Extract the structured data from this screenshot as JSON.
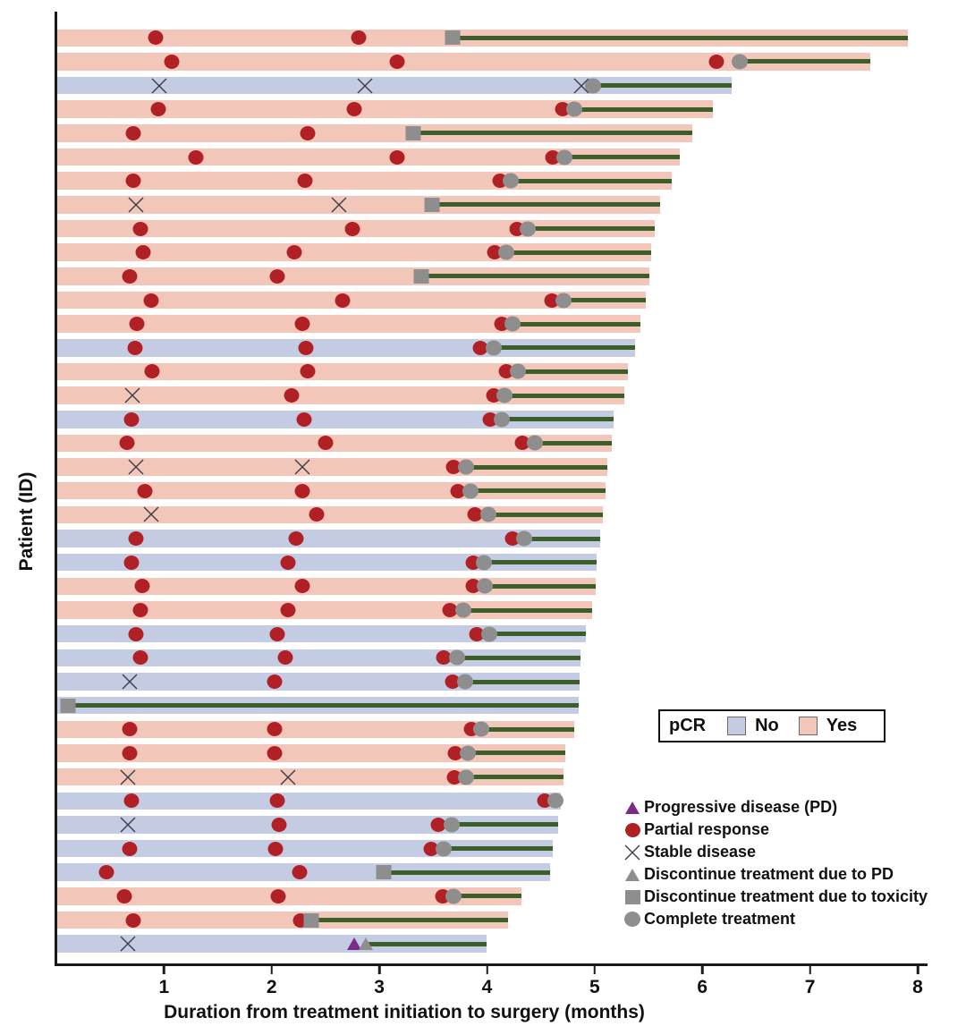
{
  "colors": {
    "pcr_yes_bar": "#f2c6b9",
    "pcr_no_bar": "#c4cce4",
    "partial_response": "#b02025",
    "progressive_disease": "#7b2a85",
    "discontinue_gray": "#8e8e8e",
    "treatment_line_green": "#3c5e28",
    "axis": "#1a1a1a"
  },
  "pcr_legend": {
    "title": "pCR",
    "no_label": "No",
    "yes_label": "Yes"
  },
  "marker_legend": [
    {
      "marker": "pd",
      "label": "Progressive disease (PD)"
    },
    {
      "marker": "pr",
      "label": "Partial response"
    },
    {
      "marker": "sd",
      "label": "Stable disease"
    },
    {
      "marker": "disc_pd",
      "label": "Discontinue treatment due to PD"
    },
    {
      "marker": "disc_tox",
      "label": "Discontinue treatment due to toxicity"
    },
    {
      "marker": "complete",
      "label": "Complete treatment"
    }
  ],
  "chart_data": {
    "type": "bar",
    "subtype": "swimmer",
    "title": "",
    "xlabel": "Duration from treatment initiation to surgery (months)",
    "ylabel": "Patient (ID)",
    "xlim": [
      0,
      8
    ],
    "xticks": [
      1,
      2,
      3,
      4,
      5,
      6,
      7,
      8
    ],
    "grid": false,
    "marker_types": {
      "pr": "Partial response (red circle)",
      "sd": "Stable disease (x)",
      "pd": "Progressive disease (purple triangle)",
      "disc_pd": "Discontinue treatment due to PD (gray triangle)",
      "disc_tox": "Discontinue treatment due to toxicity (gray square)",
      "complete": "Complete treatment (gray circle)"
    },
    "patients": [
      {
        "pcr": "Yes",
        "surgery": 7.9,
        "line_from": 3.67,
        "events": [
          {
            "t": "pr",
            "x": 0.91
          },
          {
            "t": "pr",
            "x": 2.8
          },
          {
            "t": "disc_tox",
            "x": 3.67
          }
        ]
      },
      {
        "pcr": "Yes",
        "surgery": 7.55,
        "line_from": 6.34,
        "events": [
          {
            "t": "pr",
            "x": 1.06
          },
          {
            "t": "pr",
            "x": 3.16
          },
          {
            "t": "pr",
            "x": 6.12
          },
          {
            "t": "complete",
            "x": 6.34
          }
        ]
      },
      {
        "pcr": "No",
        "surgery": 6.26,
        "line_from": 4.98,
        "events": [
          {
            "t": "sd",
            "x": 0.95
          },
          {
            "t": "sd",
            "x": 2.86
          },
          {
            "t": "sd",
            "x": 4.87
          },
          {
            "t": "complete",
            "x": 4.98
          }
        ]
      },
      {
        "pcr": "Yes",
        "surgery": 6.09,
        "line_from": 4.8,
        "events": [
          {
            "t": "pr",
            "x": 0.94
          },
          {
            "t": "pr",
            "x": 2.76
          },
          {
            "t": "pr",
            "x": 4.69
          },
          {
            "t": "complete",
            "x": 4.8
          }
        ]
      },
      {
        "pcr": "Yes",
        "surgery": 5.9,
        "line_from": 3.31,
        "events": [
          {
            "t": "pr",
            "x": 0.71
          },
          {
            "t": "pr",
            "x": 2.33
          },
          {
            "t": "disc_tox",
            "x": 3.31
          }
        ]
      },
      {
        "pcr": "Yes",
        "surgery": 5.78,
        "line_from": 4.71,
        "events": [
          {
            "t": "pr",
            "x": 1.29
          },
          {
            "t": "pr",
            "x": 3.16
          },
          {
            "t": "pr",
            "x": 4.6
          },
          {
            "t": "complete",
            "x": 4.71
          }
        ]
      },
      {
        "pcr": "Yes",
        "surgery": 5.71,
        "line_from": 4.21,
        "events": [
          {
            "t": "pr",
            "x": 0.71
          },
          {
            "t": "pr",
            "x": 2.3
          },
          {
            "t": "pr",
            "x": 4.11
          },
          {
            "t": "complete",
            "x": 4.21
          }
        ]
      },
      {
        "pcr": "Yes",
        "surgery": 5.6,
        "line_from": 3.48,
        "events": [
          {
            "t": "sd",
            "x": 0.73
          },
          {
            "t": "sd",
            "x": 2.62
          },
          {
            "t": "disc_tox",
            "x": 3.48
          }
        ]
      },
      {
        "pcr": "Yes",
        "surgery": 5.55,
        "line_from": 4.37,
        "events": [
          {
            "t": "pr",
            "x": 0.77
          },
          {
            "t": "pr",
            "x": 2.74
          },
          {
            "t": "pr",
            "x": 4.27
          },
          {
            "t": "complete",
            "x": 4.37
          }
        ]
      },
      {
        "pcr": "Yes",
        "surgery": 5.52,
        "line_from": 4.17,
        "events": [
          {
            "t": "pr",
            "x": 0.8
          },
          {
            "t": "pr",
            "x": 2.2
          },
          {
            "t": "pr",
            "x": 4.06
          },
          {
            "t": "complete",
            "x": 4.17
          }
        ]
      },
      {
        "pcr": "Yes",
        "surgery": 5.5,
        "line_from": 3.38,
        "events": [
          {
            "t": "pr",
            "x": 0.67
          },
          {
            "t": "pr",
            "x": 2.04
          },
          {
            "t": "disc_tox",
            "x": 3.38
          }
        ]
      },
      {
        "pcr": "Yes",
        "surgery": 5.47,
        "line_from": 4.7,
        "events": [
          {
            "t": "pr",
            "x": 0.87
          },
          {
            "t": "pr",
            "x": 2.65
          },
          {
            "t": "pr",
            "x": 4.59
          },
          {
            "t": "complete",
            "x": 4.7
          }
        ]
      },
      {
        "pcr": "Yes",
        "surgery": 5.42,
        "line_from": 4.23,
        "events": [
          {
            "t": "pr",
            "x": 0.74
          },
          {
            "t": "pr",
            "x": 2.28
          },
          {
            "t": "pr",
            "x": 4.13
          },
          {
            "t": "complete",
            "x": 4.23
          }
        ]
      },
      {
        "pcr": "No",
        "surgery": 5.37,
        "line_from": 4.05,
        "events": [
          {
            "t": "pr",
            "x": 0.72
          },
          {
            "t": "pr",
            "x": 2.31
          },
          {
            "t": "pr",
            "x": 3.93
          },
          {
            "t": "complete",
            "x": 4.05
          }
        ]
      },
      {
        "pcr": "Yes",
        "surgery": 5.3,
        "line_from": 4.28,
        "events": [
          {
            "t": "pr",
            "x": 0.88
          },
          {
            "t": "pr",
            "x": 2.33
          },
          {
            "t": "pr",
            "x": 4.17
          },
          {
            "t": "complete",
            "x": 4.28
          }
        ]
      },
      {
        "pcr": "Yes",
        "surgery": 5.27,
        "line_from": 4.15,
        "events": [
          {
            "t": "sd",
            "x": 0.7
          },
          {
            "t": "pr",
            "x": 2.18
          },
          {
            "t": "pr",
            "x": 4.05
          },
          {
            "t": "complete",
            "x": 4.15
          }
        ]
      },
      {
        "pcr": "No",
        "surgery": 5.17,
        "line_from": 4.13,
        "events": [
          {
            "t": "pr",
            "x": 0.69
          },
          {
            "t": "pr",
            "x": 2.29
          },
          {
            "t": "pr",
            "x": 4.02
          },
          {
            "t": "complete",
            "x": 4.13
          }
        ]
      },
      {
        "pcr": "Yes",
        "surgery": 5.15,
        "line_from": 4.44,
        "events": [
          {
            "t": "pr",
            "x": 0.65
          },
          {
            "t": "pr",
            "x": 2.49
          },
          {
            "t": "pr",
            "x": 4.32
          },
          {
            "t": "complete",
            "x": 4.44
          }
        ]
      },
      {
        "pcr": "Yes",
        "surgery": 5.11,
        "line_from": 3.8,
        "events": [
          {
            "t": "sd",
            "x": 0.73
          },
          {
            "t": "sd",
            "x": 2.28
          },
          {
            "t": "pr",
            "x": 3.68
          },
          {
            "t": "complete",
            "x": 3.8
          }
        ]
      },
      {
        "pcr": "Yes",
        "surgery": 5.09,
        "line_from": 3.84,
        "events": [
          {
            "t": "pr",
            "x": 0.81
          },
          {
            "t": "pr",
            "x": 2.28
          },
          {
            "t": "pr",
            "x": 3.72
          },
          {
            "t": "complete",
            "x": 3.84
          }
        ]
      },
      {
        "pcr": "Yes",
        "surgery": 5.07,
        "line_from": 4.0,
        "events": [
          {
            "t": "sd",
            "x": 0.87
          },
          {
            "t": "pr",
            "x": 2.41
          },
          {
            "t": "pr",
            "x": 3.88
          },
          {
            "t": "complete",
            "x": 4.0
          }
        ]
      },
      {
        "pcr": "No",
        "surgery": 5.04,
        "line_from": 4.34,
        "events": [
          {
            "t": "pr",
            "x": 0.73
          },
          {
            "t": "pr",
            "x": 2.22
          },
          {
            "t": "pr",
            "x": 4.23
          },
          {
            "t": "complete",
            "x": 4.34
          }
        ]
      },
      {
        "pcr": "No",
        "surgery": 5.01,
        "line_from": 3.96,
        "events": [
          {
            "t": "pr",
            "x": 0.69
          },
          {
            "t": "pr",
            "x": 2.14
          },
          {
            "t": "pr",
            "x": 3.86
          },
          {
            "t": "complete",
            "x": 3.96
          }
        ]
      },
      {
        "pcr": "Yes",
        "surgery": 5.0,
        "line_from": 3.97,
        "events": [
          {
            "t": "pr",
            "x": 0.79
          },
          {
            "t": "pr",
            "x": 2.28
          },
          {
            "t": "pr",
            "x": 3.86
          },
          {
            "t": "complete",
            "x": 3.97
          }
        ]
      },
      {
        "pcr": "Yes",
        "surgery": 4.97,
        "line_from": 3.77,
        "events": [
          {
            "t": "pr",
            "x": 0.77
          },
          {
            "t": "pr",
            "x": 2.14
          },
          {
            "t": "pr",
            "x": 3.65
          },
          {
            "t": "complete",
            "x": 3.77
          }
        ]
      },
      {
        "pcr": "No",
        "surgery": 4.91,
        "line_from": 4.01,
        "events": [
          {
            "t": "pr",
            "x": 0.73
          },
          {
            "t": "pr",
            "x": 2.04
          },
          {
            "t": "pr",
            "x": 3.9
          },
          {
            "t": "complete",
            "x": 4.01
          }
        ]
      },
      {
        "pcr": "No",
        "surgery": 4.86,
        "line_from": 3.71,
        "events": [
          {
            "t": "pr",
            "x": 0.77
          },
          {
            "t": "pr",
            "x": 2.12
          },
          {
            "t": "pr",
            "x": 3.59
          },
          {
            "t": "complete",
            "x": 3.71
          }
        ]
      },
      {
        "pcr": "No",
        "surgery": 4.85,
        "line_from": 3.79,
        "events": [
          {
            "t": "sd",
            "x": 0.67
          },
          {
            "t": "pr",
            "x": 2.02
          },
          {
            "t": "pr",
            "x": 3.67
          },
          {
            "t": "complete",
            "x": 3.79
          }
        ]
      },
      {
        "pcr": "No",
        "surgery": 4.84,
        "line_from": 0.1,
        "events": [
          {
            "t": "disc_tox",
            "x": 0.1
          }
        ]
      },
      {
        "pcr": "Yes",
        "surgery": 4.8,
        "line_from": 3.94,
        "events": [
          {
            "t": "pr",
            "x": 0.67
          },
          {
            "t": "pr",
            "x": 2.02
          },
          {
            "t": "pr",
            "x": 3.85
          },
          {
            "t": "complete",
            "x": 3.94
          }
        ]
      },
      {
        "pcr": "Yes",
        "surgery": 4.72,
        "line_from": 3.81,
        "events": [
          {
            "t": "pr",
            "x": 0.67
          },
          {
            "t": "pr",
            "x": 2.02
          },
          {
            "t": "pr",
            "x": 3.7
          },
          {
            "t": "complete",
            "x": 3.81
          }
        ]
      },
      {
        "pcr": "Yes",
        "surgery": 4.7,
        "line_from": 3.8,
        "events": [
          {
            "t": "sd",
            "x": 0.66
          },
          {
            "t": "sd",
            "x": 2.14
          },
          {
            "t": "pr",
            "x": 3.69
          },
          {
            "t": "complete",
            "x": 3.8
          }
        ]
      },
      {
        "pcr": "No",
        "surgery": 4.68,
        "line_from": 4.63,
        "events": [
          {
            "t": "pr",
            "x": 0.69
          },
          {
            "t": "pr",
            "x": 2.04
          },
          {
            "t": "pr",
            "x": 4.53
          },
          {
            "t": "complete",
            "x": 4.63
          }
        ]
      },
      {
        "pcr": "No",
        "surgery": 4.65,
        "line_from": 3.66,
        "events": [
          {
            "t": "sd",
            "x": 0.66
          },
          {
            "t": "pr",
            "x": 2.06
          },
          {
            "t": "pr",
            "x": 3.54
          },
          {
            "t": "complete",
            "x": 3.66
          }
        ]
      },
      {
        "pcr": "No",
        "surgery": 4.6,
        "line_from": 3.59,
        "events": [
          {
            "t": "pr",
            "x": 0.67
          },
          {
            "t": "pr",
            "x": 2.03
          },
          {
            "t": "pr",
            "x": 3.47
          },
          {
            "t": "complete",
            "x": 3.59
          }
        ]
      },
      {
        "pcr": "No",
        "surgery": 4.58,
        "line_from": 3.03,
        "events": [
          {
            "t": "pr",
            "x": 0.46
          },
          {
            "t": "pr",
            "x": 2.25
          },
          {
            "t": "disc_tox",
            "x": 3.03
          }
        ]
      },
      {
        "pcr": "Yes",
        "surgery": 4.31,
        "line_from": 3.68,
        "events": [
          {
            "t": "pr",
            "x": 0.62
          },
          {
            "t": "pr",
            "x": 2.05
          },
          {
            "t": "pr",
            "x": 3.58
          },
          {
            "t": "complete",
            "x": 3.68
          }
        ]
      },
      {
        "pcr": "Yes",
        "surgery": 4.19,
        "line_from": 2.36,
        "events": [
          {
            "t": "pr",
            "x": 0.71
          },
          {
            "t": "pr",
            "x": 2.26
          },
          {
            "t": "disc_tox",
            "x": 2.36
          }
        ]
      },
      {
        "pcr": "No",
        "surgery": 3.99,
        "line_from": 2.87,
        "events": [
          {
            "t": "sd",
            "x": 0.66
          },
          {
            "t": "pd",
            "x": 2.76
          },
          {
            "t": "disc_pd",
            "x": 2.87
          }
        ]
      }
    ]
  }
}
